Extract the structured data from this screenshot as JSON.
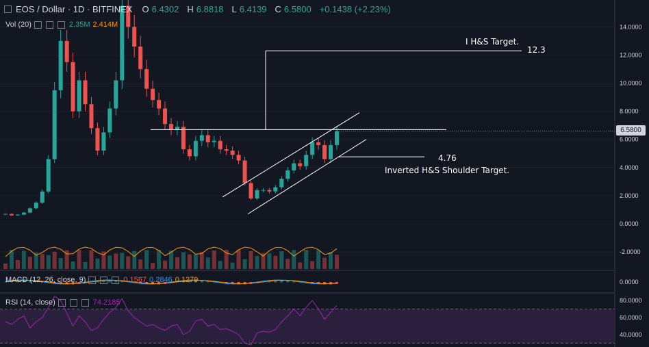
{
  "header": {
    "symbol": "EOS / Dollar · 1D · BITFINEX",
    "open_label": "O",
    "open": "6.4302",
    "high_label": "H",
    "high": "6.8818",
    "low_label": "L",
    "low": "6.4139",
    "close_label": "C",
    "close": "6.5800",
    "change": "+0.1438 (+2.23%)"
  },
  "indicators": {
    "vol": {
      "label": "Vol (20)",
      "value1": "2.35M",
      "value2": "2.414M"
    },
    "macd": {
      "label": "MACD (12, 26, close, 9)",
      "v1": "0.1567",
      "v2": "0.2846",
      "v3": "0.1279"
    },
    "rsi": {
      "label": "RSI (14, close)",
      "value": "74.2185"
    }
  },
  "annotations": {
    "hs_target_label": "I H&S Target.",
    "hs_target_value": "12.3",
    "shoulder_value": "4.76",
    "shoulder_label": "Inverted H&S Shoulder Target."
  },
  "price_tag": "6.5800",
  "colors": {
    "background": "#131722",
    "up": "#26a69a",
    "down": "#ef5350",
    "volume_ma": "#ff9800",
    "macd_line": "#2196f3",
    "signal_line": "#ff9800",
    "rsi_line": "#9c27b0",
    "rsi_band": "#2a1f3d"
  },
  "chart_data": [
    {
      "type": "candlestick",
      "title": "EOS / Dollar · 1D · BITFINEX",
      "ylim": [
        -3,
        15
      ],
      "y_ticks": [
        "14.0000",
        "12.0000",
        "10.0000",
        "8.0000",
        "6.0000",
        "4.0000",
        "2.0000",
        "0.0000",
        "-2.0000"
      ],
      "close_series": [
        0.7,
        0.6,
        0.65,
        0.8,
        1.1,
        1.5,
        2.3,
        4.6,
        9.5,
        13.0,
        11.5,
        8.0,
        10.2,
        8.5,
        6.8,
        5.2,
        6.5,
        8.2,
        10.2,
        15.5,
        14.0,
        12.6,
        11.0,
        9.6,
        8.8,
        8.2,
        7.1,
        6.7,
        6.9,
        5.3,
        4.8,
        5.9,
        6.3,
        5.8,
        5.9,
        5.3,
        5.2,
        4.9,
        4.5,
        2.9,
        1.8,
        2.4,
        2.4,
        2.3,
        2.6,
        3.2,
        3.8,
        4.3,
        4.1,
        4.9,
        5.8,
        5.6,
        4.6,
        5.6,
        6.58
      ],
      "last": {
        "open": 6.4302,
        "high": 6.8818,
        "low": 6.4139,
        "close": 6.58
      },
      "annotations": [
        "I H&S Target.",
        "12.3",
        "4.76",
        "Inverted H&S Shoulder Target."
      ]
    },
    {
      "type": "bar",
      "title": "Vol (20)",
      "last_values": [
        2.35,
        2.414
      ],
      "units": "M"
    },
    {
      "type": "line",
      "title": "MACD (12, 26, close, 9)",
      "y_ticks": [
        "0.0000"
      ],
      "last_values": [
        0.1567,
        0.2846,
        0.1279
      ]
    },
    {
      "type": "line",
      "title": "RSI (14, close)",
      "y_ticks": [
        "80.0000",
        "60.0000",
        "40.0000"
      ],
      "last_value": 74.2185,
      "series_approx": [
        55,
        52,
        58,
        62,
        48,
        55,
        60,
        72,
        85,
        80,
        65,
        50,
        62,
        55,
        45,
        48,
        58,
        66,
        72,
        82,
        68,
        60,
        55,
        50,
        52,
        48,
        45,
        50,
        52,
        40,
        44,
        56,
        58,
        50,
        52,
        46,
        47,
        44,
        40,
        30,
        28,
        42,
        44,
        43,
        46,
        55,
        62,
        70,
        62,
        72,
        80,
        70,
        58,
        66,
        74.2
      ]
    }
  ]
}
